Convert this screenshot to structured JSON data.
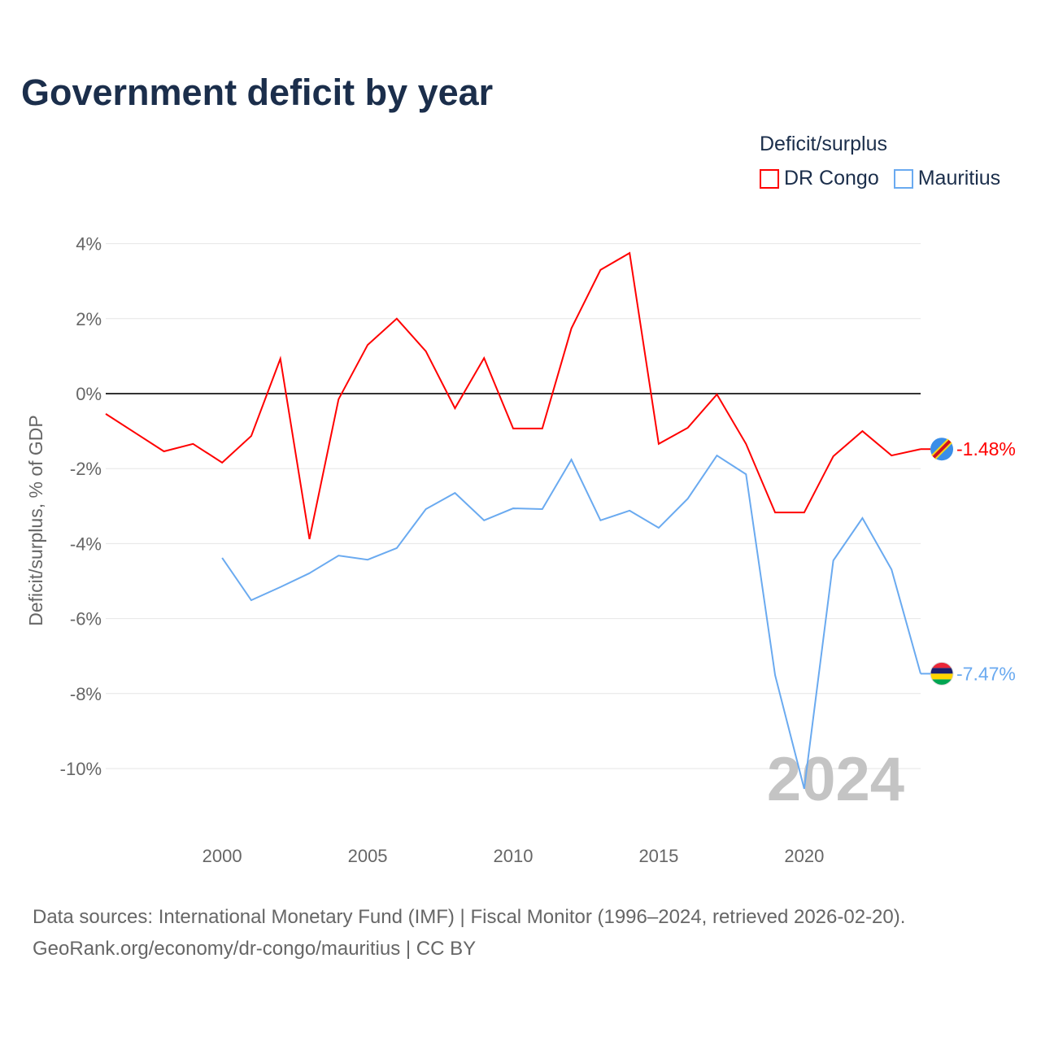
{
  "chart_data": {
    "type": "line",
    "title": "Government deficit by year",
    "ylabel": "Deficit/surplus, % of GDP",
    "xlabel": "",
    "xlim": [
      1996,
      2024
    ],
    "ylim": [
      -11.2,
      4.5
    ],
    "x_ticks": [
      2000,
      2005,
      2010,
      2015,
      2020
    ],
    "x_tick_labels": [
      "2000",
      "2005",
      "2010",
      "2015",
      "2020"
    ],
    "y_ticks": [
      4,
      2,
      0,
      -2,
      -4,
      -6,
      -8,
      -10
    ],
    "y_tick_labels": [
      "4%",
      "2%",
      "0%",
      "-2%",
      "-4%",
      "-6%",
      "-8%",
      "-10%"
    ],
    "grid": true,
    "legend_title": "Deficit/surplus",
    "legend_position": "top-right",
    "watermark_year": "2024",
    "series": [
      {
        "name": "DR Congo",
        "color": "#ff0000",
        "end_label": "-1.48%",
        "x": [
          1996,
          1997,
          1998,
          1999,
          2000,
          2001,
          2002,
          2003,
          2004,
          2005,
          2006,
          2007,
          2008,
          2009,
          2010,
          2011,
          2012,
          2013,
          2014,
          2015,
          2016,
          2017,
          2018,
          2019,
          2020,
          2021,
          2022,
          2023,
          2024
        ],
        "values": [
          -0.54,
          -1.04,
          -1.54,
          -1.34,
          -1.84,
          -1.13,
          0.93,
          -3.88,
          -0.15,
          1.3,
          2.0,
          1.13,
          -0.39,
          0.95,
          -0.93,
          -0.93,
          1.74,
          3.3,
          3.75,
          -1.34,
          -0.91,
          -0.02,
          -1.34,
          -3.17,
          -3.17,
          -1.67,
          -1.0,
          -1.65,
          -1.48
        ]
      },
      {
        "name": "Mauritius",
        "color": "#6aaaf0",
        "end_label": "-7.47%",
        "x": [
          2000,
          2001,
          2002,
          2003,
          2004,
          2005,
          2006,
          2007,
          2008,
          2009,
          2010,
          2011,
          2012,
          2013,
          2014,
          2015,
          2016,
          2017,
          2018,
          2019,
          2020,
          2021,
          2022,
          2023,
          2024
        ],
        "values": [
          -4.38,
          -5.51,
          -5.16,
          -4.79,
          -4.32,
          -4.43,
          -4.12,
          -3.08,
          -2.65,
          -3.38,
          -3.06,
          -3.08,
          -1.76,
          -3.38,
          -3.12,
          -3.58,
          -2.8,
          -1.65,
          -2.15,
          -7.51,
          -10.54,
          -4.45,
          -3.32,
          -4.69,
          -7.47
        ]
      }
    ]
  },
  "source": {
    "line1": "Data sources: International Monetary Fund (IMF) | Fiscal Monitor (1996–2024, retrieved 2026-02-20).",
    "line2": "GeoRank.org/economy/dr-congo/mauritius | CC BY"
  }
}
